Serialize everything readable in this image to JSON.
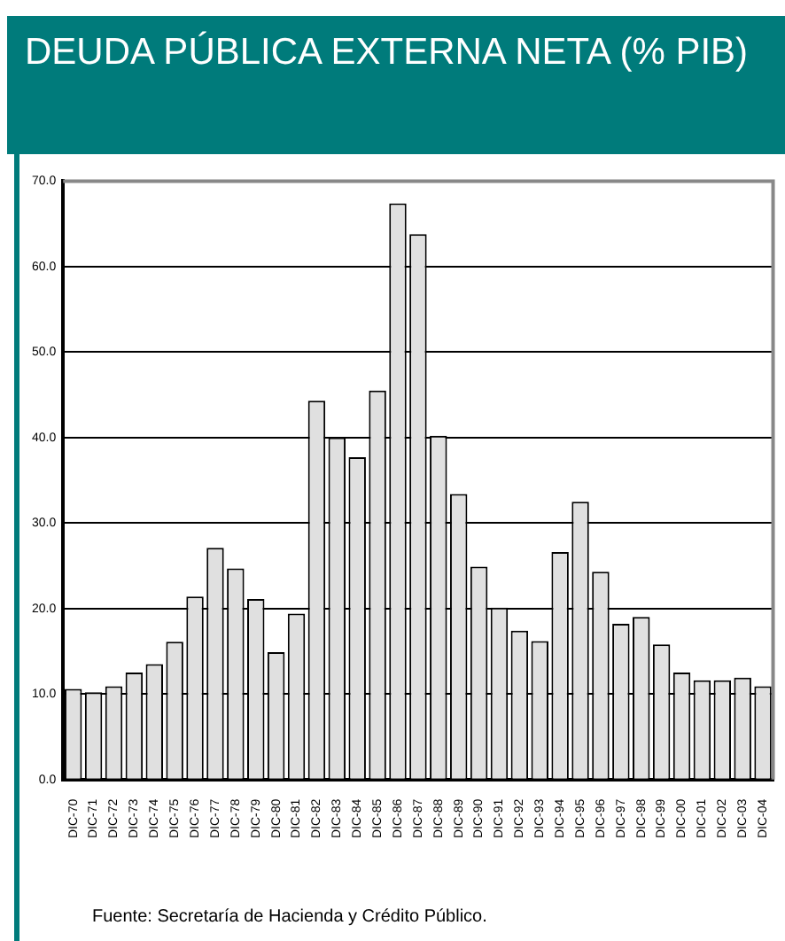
{
  "chart_data": {
    "type": "bar",
    "title": "DEUDA PÚBLICA EXTERNA NETA (% PIB)",
    "categories": [
      "DIC-70",
      "DIC-71",
      "DIC-72",
      "DIC-73",
      "DIC-74",
      "DIC-75",
      "DIC-76",
      "DIC-77",
      "DIC-78",
      "DIC-79",
      "DIC-80",
      "DIC-81",
      "DIC-82",
      "DIC-83",
      "DIC-84",
      "DIC-85",
      "DIC-86",
      "DIC-87",
      "DIC-88",
      "DIC-89",
      "DIC-90",
      "DIC-91",
      "DIC-92",
      "DIC-93",
      "DIC-94",
      "DIC-95",
      "DIC-96",
      "DIC-97",
      "DIC-98",
      "DIC-99",
      "DIC-00",
      "DIC-01",
      "DIC-02",
      "DIC-03",
      "DIC-04"
    ],
    "values": [
      10.6,
      10.2,
      10.9,
      12.5,
      13.5,
      16.1,
      21.4,
      27.1,
      24.7,
      21.1,
      14.9,
      19.4,
      44.3,
      40.0,
      37.7,
      45.5,
      67.4,
      63.8,
      40.2,
      33.4,
      24.9,
      20.1,
      17.4,
      16.2,
      26.6,
      32.5,
      24.3,
      18.2,
      19.0,
      15.8,
      12.5,
      11.6,
      11.6,
      11.9,
      10.9
    ],
    "color": "#e0e0e0",
    "ylim": [
      0,
      70
    ],
    "yticks": [
      {
        "value": 0,
        "label": "0.0"
      },
      {
        "value": 10,
        "label": "10.0"
      },
      {
        "value": 20,
        "label": "20.0"
      },
      {
        "value": 30,
        "label": "30.0"
      },
      {
        "value": 40,
        "label": "40.0"
      },
      {
        "value": 50,
        "label": "50.0"
      },
      {
        "value": 60,
        "label": "60.0"
      },
      {
        "value": 70,
        "label": "70.0"
      }
    ],
    "grid": "y",
    "legend": false,
    "annotations": [
      "Fuente: Secretaría de Hacienda y Crédito Público."
    ]
  }
}
